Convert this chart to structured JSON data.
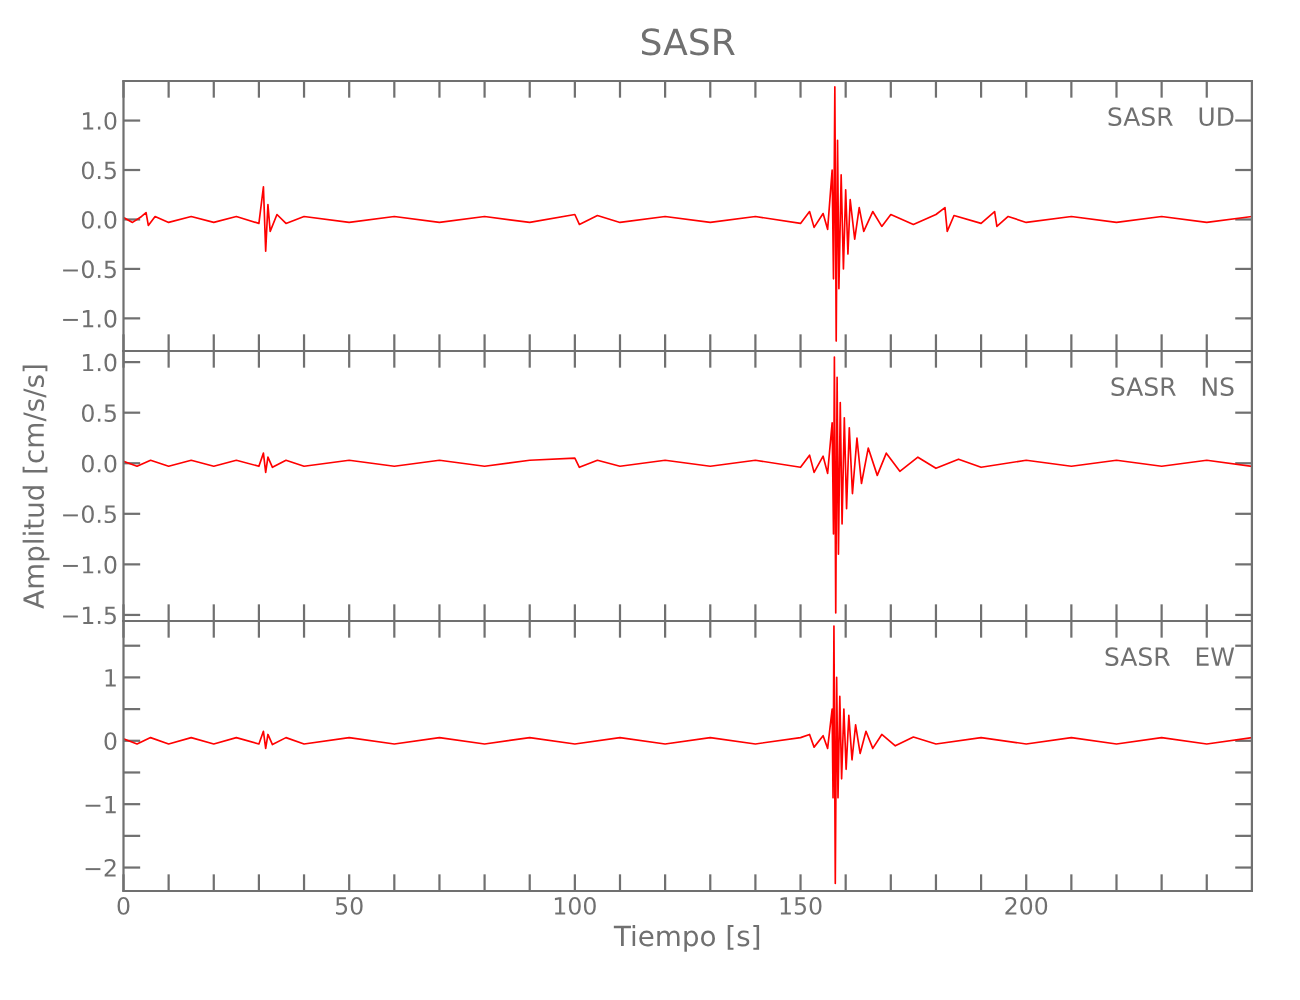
{
  "chart_data": [
    {
      "type": "line",
      "title": "SASR",
      "annotations": [
        "SASR   UD"
      ],
      "tick_labels": "y",
      "xlim": [
        0,
        250
      ],
      "ylim": [
        -1.33,
        1.4
      ],
      "xticks": [
        0,
        {
          "value": 10,
          "label": null
        },
        {
          "value": 20,
          "label": null
        },
        {
          "value": 30,
          "label": null
        },
        {
          "value": 40,
          "label": null
        },
        50,
        {
          "value": 60,
          "label": null
        },
        {
          "value": 70,
          "label": null
        },
        {
          "value": 80,
          "label": null
        },
        {
          "value": 90,
          "label": null
        },
        100,
        {
          "value": 110,
          "label": null
        },
        {
          "value": 120,
          "label": null
        },
        {
          "value": 130,
          "label": null
        },
        {
          "value": 140,
          "label": null
        },
        150,
        {
          "value": 160,
          "label": null
        },
        {
          "value": 170,
          "label": null
        },
        {
          "value": 180,
          "label": null
        },
        {
          "value": 190,
          "label": null
        },
        200,
        {
          "value": 210,
          "label": null
        },
        {
          "value": 220,
          "label": null
        },
        {
          "value": 230,
          "label": null
        },
        {
          "value": 240,
          "label": null
        }
      ],
      "yticks": [
        {
          "value": -1.0,
          "label": "−1.0"
        },
        {
          "value": -0.5,
          "label": "−0.5"
        },
        {
          "value": 0.0,
          "label": "0.0"
        },
        {
          "value": 0.5,
          "label": "0.5"
        },
        {
          "value": 1.0,
          "label": "1.0"
        }
      ],
      "grid": false,
      "legend": false,
      "marker": "none",
      "line_style": "solid",
      "series": [
        {
          "color": "#ff0000",
          "x": [
            0,
            2,
            4,
            5,
            5.5,
            7,
            10,
            15,
            20,
            25,
            30,
            31,
            31.5,
            32,
            32.5,
            34,
            36,
            40,
            50,
            60,
            70,
            80,
            90,
            100,
            101,
            105,
            110,
            120,
            130,
            140,
            150,
            152,
            153,
            155,
            156,
            157,
            157.3,
            157.6,
            157.9,
            158.2,
            158.5,
            159,
            159.5,
            160,
            160.5,
            161,
            162,
            163,
            164,
            166,
            168,
            170,
            175,
            180,
            182,
            182.5,
            184,
            190,
            193,
            193.5,
            196,
            200,
            210,
            220,
            230,
            240,
            250
          ],
          "values": [
            0.02,
            -0.03,
            0.03,
            0.07,
            -0.06,
            0.03,
            -0.03,
            0.03,
            -0.03,
            0.03,
            -0.04,
            0.33,
            -0.32,
            0.15,
            -0.12,
            0.05,
            -0.04,
            0.03,
            -0.03,
            0.03,
            -0.03,
            0.03,
            -0.03,
            0.05,
            -0.05,
            0.04,
            -0.03,
            0.03,
            -0.03,
            0.03,
            -0.04,
            0.08,
            -0.08,
            0.06,
            -0.1,
            0.5,
            -0.6,
            1.34,
            -1.23,
            0.8,
            -0.7,
            0.45,
            -0.5,
            0.3,
            -0.35,
            0.2,
            -0.2,
            0.12,
            -0.12,
            0.08,
            -0.07,
            0.05,
            -0.05,
            0.05,
            0.12,
            -0.12,
            0.04,
            -0.04,
            0.08,
            -0.07,
            0.03,
            -0.03,
            0.03,
            -0.03,
            0.03,
            -0.03,
            0.03
          ]
        }
      ]
    },
    {
      "type": "line",
      "ylabel": "Amplitud [cm/s/s]",
      "annotations": [
        "SASR   NS"
      ],
      "tick_labels": "y",
      "xlim": [
        0,
        250
      ],
      "ylim": [
        -1.56,
        1.11
      ],
      "xticks": [
        0,
        {
          "value": 10,
          "label": null
        },
        {
          "value": 20,
          "label": null
        },
        {
          "value": 30,
          "label": null
        },
        {
          "value": 40,
          "label": null
        },
        50,
        {
          "value": 60,
          "label": null
        },
        {
          "value": 70,
          "label": null
        },
        {
          "value": 80,
          "label": null
        },
        {
          "value": 90,
          "label": null
        },
        100,
        {
          "value": 110,
          "label": null
        },
        {
          "value": 120,
          "label": null
        },
        {
          "value": 130,
          "label": null
        },
        {
          "value": 140,
          "label": null
        },
        150,
        {
          "value": 160,
          "label": null
        },
        {
          "value": 170,
          "label": null
        },
        {
          "value": 180,
          "label": null
        },
        {
          "value": 190,
          "label": null
        },
        200,
        {
          "value": 210,
          "label": null
        },
        {
          "value": 220,
          "label": null
        },
        {
          "value": 230,
          "label": null
        },
        {
          "value": 240,
          "label": null
        }
      ],
      "yticks": [
        {
          "value": -1.5,
          "label": "−1.5"
        },
        {
          "value": -1.0,
          "label": "−1.0"
        },
        {
          "value": -0.5,
          "label": "−0.5"
        },
        {
          "value": 0.0,
          "label": "0.0"
        },
        {
          "value": 0.5,
          "label": "0.5"
        },
        {
          "value": 1.0,
          "label": "1.0"
        }
      ],
      "grid": false,
      "legend": false,
      "marker": "none",
      "line_style": "solid",
      "series": [
        {
          "color": "#ff0000",
          "x": [
            0,
            3,
            6,
            10,
            15,
            20,
            25,
            30,
            31,
            31.5,
            32,
            33,
            36,
            40,
            50,
            60,
            70,
            80,
            90,
            100,
            101,
            105,
            110,
            120,
            130,
            140,
            150,
            152,
            153,
            155,
            156,
            157,
            157.3,
            157.5,
            157.8,
            158.1,
            158.4,
            158.8,
            159.2,
            159.7,
            160.2,
            160.8,
            161.5,
            162.5,
            163.5,
            165,
            167,
            169,
            172,
            176,
            180,
            185,
            190,
            200,
            210,
            220,
            230,
            240,
            250
          ],
          "values": [
            0.02,
            -0.03,
            0.03,
            -0.03,
            0.03,
            -0.03,
            0.03,
            -0.03,
            0.1,
            -0.09,
            0.06,
            -0.04,
            0.03,
            -0.03,
            0.03,
            -0.03,
            0.03,
            -0.03,
            0.03,
            0.05,
            -0.04,
            0.03,
            -0.03,
            0.03,
            -0.03,
            0.03,
            -0.04,
            0.08,
            -0.09,
            0.07,
            -0.1,
            0.4,
            -0.7,
            1.05,
            -1.48,
            0.85,
            -0.9,
            0.6,
            -0.6,
            0.45,
            -0.45,
            0.35,
            -0.3,
            0.25,
            -0.2,
            0.15,
            -0.12,
            0.1,
            -0.08,
            0.06,
            -0.05,
            0.04,
            -0.04,
            0.03,
            -0.03,
            0.03,
            -0.03,
            0.03,
            -0.03
          ]
        }
      ]
    },
    {
      "type": "line",
      "xlabel": "Tiempo [s]",
      "annotations": [
        "SASR   EW"
      ],
      "xlim": [
        0,
        250
      ],
      "ylim": [
        -2.37,
        1.89
      ],
      "xticks": [
        0,
        {
          "value": 10,
          "label": null
        },
        {
          "value": 20,
          "label": null
        },
        {
          "value": 30,
          "label": null
        },
        {
          "value": 40,
          "label": null
        },
        50,
        {
          "value": 60,
          "label": null
        },
        {
          "value": 70,
          "label": null
        },
        {
          "value": 80,
          "label": null
        },
        {
          "value": 90,
          "label": null
        },
        100,
        {
          "value": 110,
          "label": null
        },
        {
          "value": 120,
          "label": null
        },
        {
          "value": 130,
          "label": null
        },
        {
          "value": 140,
          "label": null
        },
        150,
        {
          "value": 160,
          "label": null
        },
        {
          "value": 170,
          "label": null
        },
        {
          "value": 180,
          "label": null
        },
        {
          "value": 190,
          "label": null
        },
        200,
        {
          "value": 210,
          "label": null
        },
        {
          "value": 220,
          "label": null
        },
        {
          "value": 230,
          "label": null
        },
        {
          "value": 240,
          "label": null
        }
      ],
      "yticks": [
        {
          "value": -2,
          "label": "−2"
        },
        {
          "value": -1.5,
          "label": null
        },
        {
          "value": -1,
          "label": "−1"
        },
        {
          "value": -0.5,
          "label": null
        },
        0,
        {
          "value": 0.5,
          "label": null
        },
        1,
        {
          "value": 1.5,
          "label": null
        }
      ],
      "grid": false,
      "legend": false,
      "marker": "none",
      "line_style": "solid",
      "series": [
        {
          "color": "#ff0000",
          "x": [
            0,
            3,
            6,
            10,
            15,
            20,
            25,
            30,
            31,
            31.5,
            32,
            33,
            36,
            40,
            50,
            60,
            70,
            80,
            90,
            100,
            110,
            120,
            130,
            140,
            150,
            152,
            153,
            155,
            156,
            157,
            157.2,
            157.4,
            157.7,
            158,
            158.3,
            158.7,
            159.1,
            159.6,
            160.1,
            160.7,
            161.4,
            162.2,
            163.2,
            164.5,
            166,
            168,
            171,
            175,
            180,
            190,
            200,
            210,
            220,
            230,
            240,
            250
          ],
          "values": [
            0.03,
            -0.05,
            0.05,
            -0.05,
            0.05,
            -0.05,
            0.05,
            -0.05,
            0.15,
            -0.12,
            0.1,
            -0.06,
            0.05,
            -0.05,
            0.05,
            -0.05,
            0.05,
            -0.05,
            0.05,
            -0.05,
            0.05,
            -0.05,
            0.05,
            -0.05,
            0.05,
            0.1,
            -0.1,
            0.08,
            -0.12,
            0.5,
            -0.9,
            1.81,
            -2.25,
            1.0,
            -0.9,
            0.7,
            -0.6,
            0.5,
            -0.45,
            0.4,
            -0.3,
            0.25,
            -0.2,
            0.15,
            -0.12,
            0.1,
            -0.08,
            0.06,
            -0.05,
            0.05,
            -0.05,
            0.05,
            -0.05,
            0.05,
            -0.05,
            0.05
          ]
        }
      ]
    }
  ]
}
